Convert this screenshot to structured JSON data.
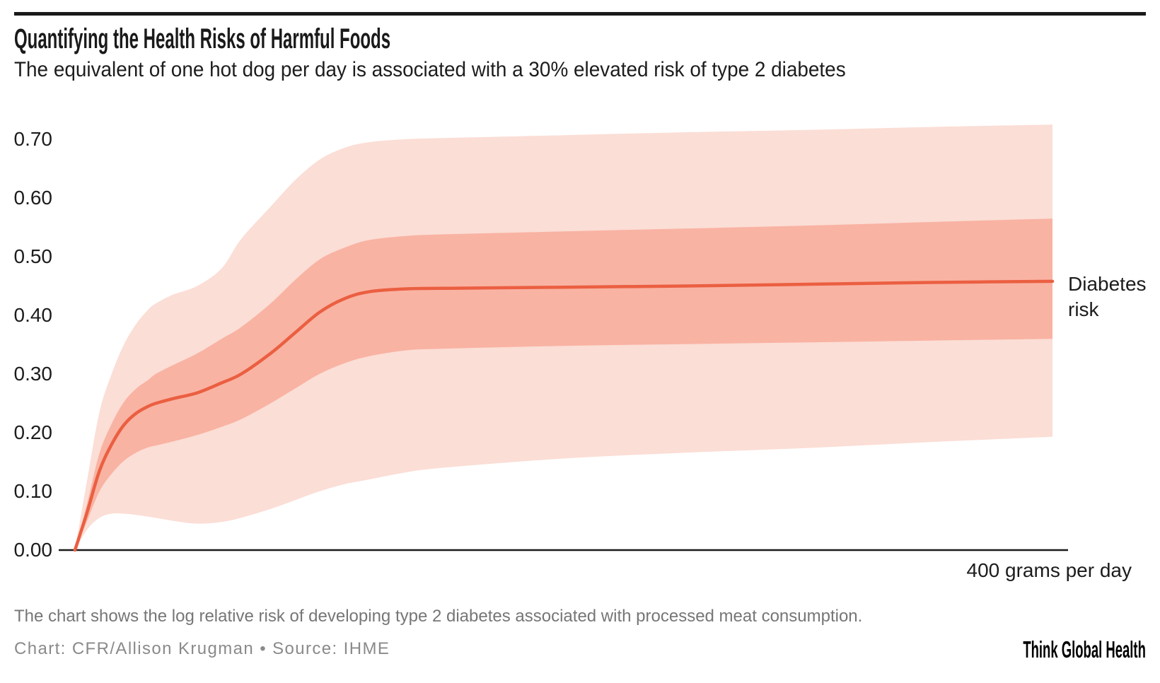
{
  "header": {
    "title": "Quantifying the Health Risks of Harmful Foods",
    "subtitle": "The equivalent of one hot dog per day is associated with a 30% elevated risk of type 2 diabetes"
  },
  "chart_data": {
    "type": "area",
    "title": "Quantifying the Health Risks of Harmful Foods",
    "subtitle": "The equivalent of one hot dog per day is associated with a 30% elevated risk of type 2 diabetes",
    "xlabel": "400 grams per day",
    "ylabel": "log relative risk of type 2 diabetes",
    "x_unit": "grams per day",
    "x_range": [
      0,
      400
    ],
    "ylim": [
      0,
      0.73
    ],
    "y_ticks": [
      "0.70",
      "0.60",
      "0.50",
      "0.40",
      "0.30",
      "0.20",
      "0.10",
      "0.00"
    ],
    "grid": "off",
    "legend": "right-edge direct label",
    "series_label": "Diabetes risk",
    "x": [
      0,
      5,
      10,
      15,
      20,
      25,
      30,
      33,
      40,
      50,
      60,
      68,
      80,
      90,
      100,
      110,
      120,
      135,
      150,
      200,
      250,
      300,
      350,
      400
    ],
    "series": [
      {
        "name": "Diabetes risk (central estimate)",
        "values": [
          0,
          0.065,
          0.135,
          0.18,
          0.213,
          0.233,
          0.245,
          0.25,
          0.258,
          0.268,
          0.285,
          0.3,
          0.335,
          0.37,
          0.405,
          0.428,
          0.44,
          0.445,
          0.446,
          0.448,
          0.45,
          0.453,
          0.456,
          0.458
        ]
      },
      {
        "name": "inner band upper",
        "values": [
          0,
          0.08,
          0.165,
          0.215,
          0.252,
          0.275,
          0.29,
          0.3,
          0.315,
          0.335,
          0.36,
          0.38,
          0.42,
          0.46,
          0.495,
          0.515,
          0.528,
          0.535,
          0.538,
          0.543,
          0.548,
          0.553,
          0.559,
          0.565
        ]
      },
      {
        "name": "inner band lower",
        "values": [
          0,
          0.05,
          0.1,
          0.13,
          0.152,
          0.166,
          0.175,
          0.178,
          0.185,
          0.196,
          0.21,
          0.223,
          0.25,
          0.275,
          0.3,
          0.318,
          0.33,
          0.34,
          0.343,
          0.348,
          0.351,
          0.354,
          0.357,
          0.36
        ]
      },
      {
        "name": "outer band upper",
        "values": [
          0,
          0.12,
          0.235,
          0.3,
          0.35,
          0.385,
          0.41,
          0.42,
          0.435,
          0.45,
          0.48,
          0.53,
          0.585,
          0.63,
          0.665,
          0.685,
          0.695,
          0.7,
          0.702,
          0.707,
          0.712,
          0.716,
          0.721,
          0.725
        ]
      },
      {
        "name": "outer band lower",
        "values": [
          0,
          0.035,
          0.055,
          0.062,
          0.062,
          0.06,
          0.057,
          0.055,
          0.05,
          0.045,
          0.048,
          0.055,
          0.07,
          0.085,
          0.1,
          0.112,
          0.12,
          0.132,
          0.14,
          0.156,
          0.166,
          0.174,
          0.184,
          0.193
        ]
      }
    ],
    "colors": {
      "line": "#EB5F41",
      "inner_band": "#F9B3A3",
      "outer_band": "#FBDED6",
      "axis": "#1A1A1A",
      "top_rule": "#1A1A1A"
    }
  },
  "footer": {
    "note": "The chart shows the log relative risk of developing type 2 diabetes associated with processed meat consumption.",
    "credit": "Chart: CFR/Allison Krugman • Source: IHME",
    "logo": "Think Global Health"
  }
}
